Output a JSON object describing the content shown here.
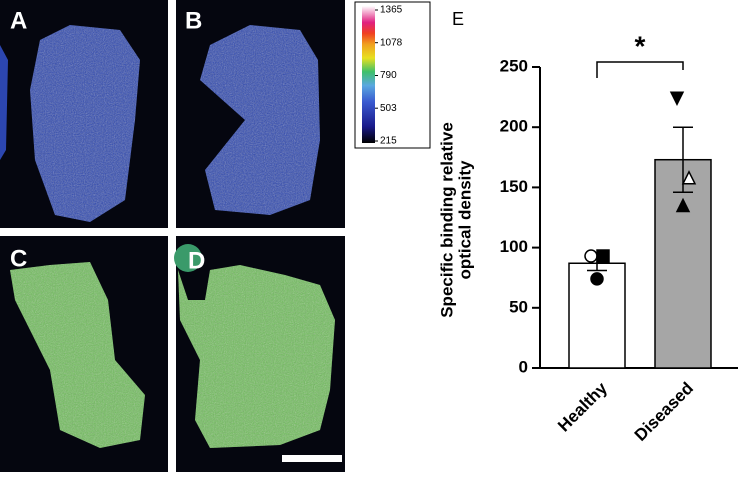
{
  "panels": {
    "labels": [
      "A",
      "B",
      "C",
      "D",
      "E"
    ]
  },
  "colorbar": {
    "ticks": [
      1365,
      1078,
      790,
      503,
      215
    ],
    "lim": [
      215,
      1365
    ]
  },
  "chart_data": {
    "type": "bar",
    "y_label": [
      "Specific binding relative",
      "optical density"
    ],
    "categories": [
      "Healthy",
      "Diseased"
    ],
    "values": [
      87,
      173
    ],
    "errors": [
      6,
      27
    ],
    "colors": [
      "#ffffff",
      "#a6a6a6"
    ],
    "points": [
      [
        93,
        93,
        74
      ],
      [
        224,
        158,
        135
      ]
    ],
    "markers": [
      [
        "open-circle",
        "square",
        "circle"
      ],
      [
        "down-triangle",
        "open-triangle",
        "triangle"
      ]
    ],
    "ylim": [
      0,
      250
    ],
    "yticks": [
      0,
      50,
      100,
      150,
      200,
      250
    ],
    "annotation": "*"
  }
}
